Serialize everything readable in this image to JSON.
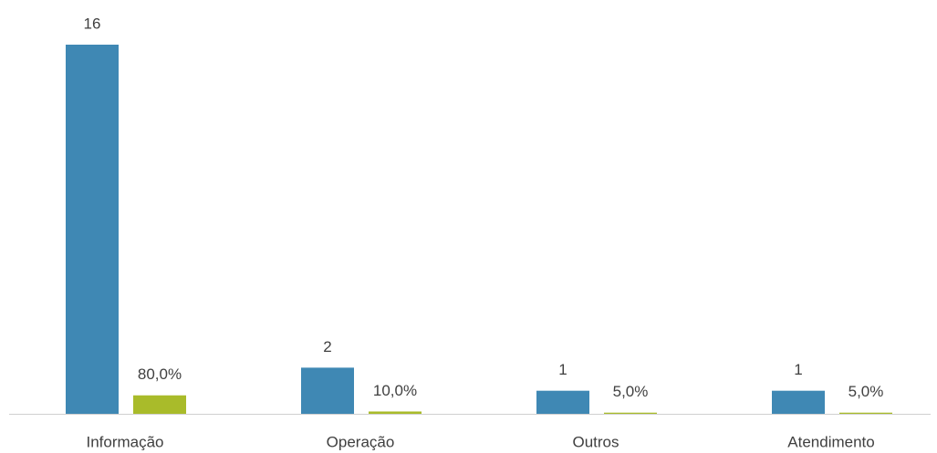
{
  "chart_data": {
    "type": "bar",
    "categories": [
      "Informação",
      "Operação",
      "Outros",
      "Atendimento"
    ],
    "series": [
      {
        "color": "#3f88b4",
        "values": [
          16,
          2,
          1,
          1
        ]
      },
      {
        "color": "#a9bb2a",
        "values": [
          0.8,
          0.1,
          0.05,
          0.05
        ],
        "value_labels": [
          "80,0%",
          "10,0%",
          "5,0%",
          "5,0%"
        ]
      }
    ]
  }
}
